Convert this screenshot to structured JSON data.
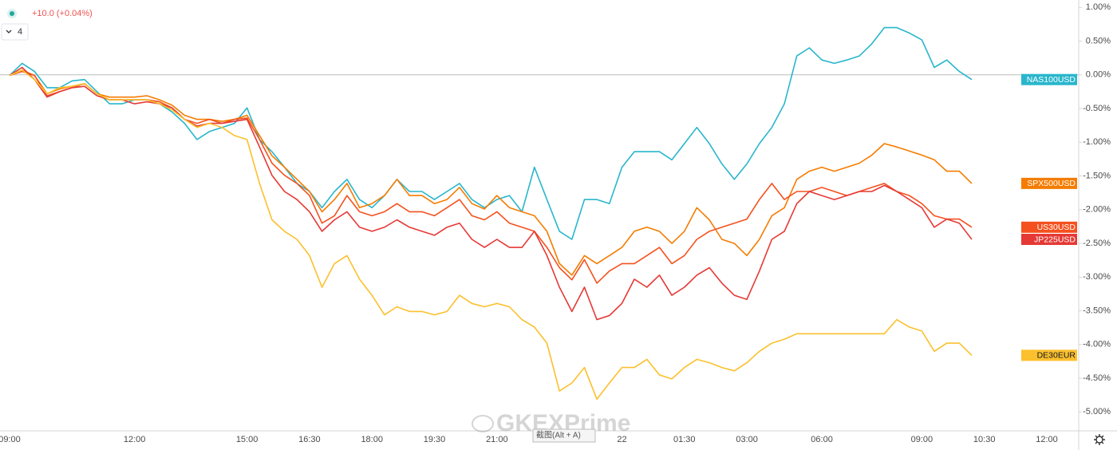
{
  "chart_data": {
    "type": "line",
    "header": {
      "change": "+10.0 (+0.04%)",
      "count": "4"
    },
    "watermark": "GKEXPrime",
    "tooltip": "截图(Alt + A)",
    "categories": [
      "09:00",
      null,
      null,
      null,
      null,
      null,
      null,
      null,
      null,
      null,
      "12:00",
      null,
      null,
      null,
      null,
      null,
      null,
      null,
      null,
      "15:00",
      null,
      null,
      null,
      null,
      "16:30",
      null,
      null,
      null,
      null,
      "18:00",
      null,
      null,
      null,
      null,
      "19:30",
      null,
      null,
      null,
      null,
      "21:00",
      null,
      null,
      null,
      null,
      null,
      null,
      null,
      null,
      null,
      "22",
      null,
      null,
      null,
      null,
      "01:30",
      null,
      null,
      null,
      null,
      "03:00",
      null,
      null,
      null,
      null,
      null,
      "06:00",
      null,
      null,
      null,
      null,
      null,
      null,
      null,
      "09:00",
      null,
      null,
      null,
      null,
      "10:30",
      null,
      null,
      null,
      null,
      "12:00"
    ],
    "ylim": [
      -5.28,
      1.11
    ],
    "yticks": [
      {
        "value": 1,
        "label": "1.00%"
      },
      {
        "value": 0.5,
        "label": "0.50%"
      },
      {
        "value": 0,
        "label": "0.00%"
      },
      {
        "value": -0.5,
        "label": "-0.50%"
      },
      {
        "value": -1,
        "label": "-1.00%"
      },
      {
        "value": -1.5,
        "label": "-1.50%"
      },
      {
        "value": -2,
        "label": "-2.00%"
      },
      {
        "value": -2.5,
        "label": "-2.50%"
      },
      {
        "value": -3,
        "label": "-3.00%"
      },
      {
        "value": -3.5,
        "label": "-3.50%"
      },
      {
        "value": -4,
        "label": "-4.00%"
      },
      {
        "value": -4.5,
        "label": "-4.50%"
      },
      {
        "value": -5,
        "label": "-5.00%"
      }
    ],
    "series": [
      {
        "name": "NAS100USD",
        "color": "#29b6cc",
        "values": [
          -0.01,
          0.17,
          0.05,
          -0.19,
          -0.19,
          -0.09,
          -0.07,
          -0.25,
          -0.43,
          -0.43,
          -0.37,
          -0.37,
          -0.43,
          -0.55,
          -0.72,
          -0.96,
          -0.84,
          -0.78,
          -0.72,
          -0.49,
          -0.96,
          -1.14,
          -1.37,
          -1.61,
          -1.73,
          -1.97,
          -1.73,
          -1.55,
          -1.85,
          -1.97,
          -1.79,
          -1.55,
          -1.73,
          -1.73,
          -1.85,
          -1.73,
          -1.61,
          -1.85,
          -1.97,
          -1.85,
          -1.79,
          -2.03,
          -1.37,
          -1.85,
          -2.32,
          -2.44,
          -1.85,
          -1.85,
          -1.91,
          -1.37,
          -1.14,
          -1.14,
          -1.14,
          -1.26,
          -1.02,
          -0.78,
          -1.02,
          -1.32,
          -1.55,
          -1.32,
          -1.02,
          -0.78,
          -0.43,
          0.28,
          0.4,
          0.22,
          0.17,
          0.22,
          0.28,
          0.46,
          0.7,
          0.7,
          0.62,
          0.52,
          0.11,
          0.22,
          0.05,
          -0.07,
          null,
          null,
          null,
          null,
          null,
          null
        ]
      },
      {
        "name": "SPX500USD",
        "color": "#f57c00",
        "values": [
          -0.01,
          0.07,
          -0.01,
          -0.28,
          -0.21,
          -0.17,
          -0.13,
          -0.28,
          -0.33,
          -0.33,
          -0.33,
          -0.31,
          -0.37,
          -0.45,
          -0.6,
          -0.66,
          -0.66,
          -0.69,
          -0.66,
          -0.6,
          -0.9,
          -1.2,
          -1.37,
          -1.55,
          -1.73,
          -2.03,
          -1.85,
          -1.61,
          -1.97,
          -1.91,
          -1.79,
          -1.55,
          -1.79,
          -1.79,
          -1.91,
          -1.85,
          -1.67,
          -1.91,
          -1.99,
          -1.79,
          -1.97,
          -2.03,
          -2.09,
          -2.32,
          -2.8,
          -2.97,
          -2.68,
          -2.8,
          -2.68,
          -2.56,
          -2.32,
          -2.26,
          -2.32,
          -2.5,
          -2.32,
          -1.97,
          -2.15,
          -2.44,
          -2.5,
          -2.68,
          -2.44,
          -2.09,
          -1.97,
          -1.55,
          -1.43,
          -1.37,
          -1.43,
          -1.37,
          -1.31,
          -1.19,
          -1.02,
          -1.07,
          -1.13,
          -1.19,
          -1.26,
          -1.43,
          -1.43,
          -1.61,
          null,
          null,
          null,
          null,
          null,
          null
        ]
      },
      {
        "name": "US30USD",
        "color": "#f4511e",
        "values": [
          -0.01,
          0.05,
          -0.01,
          -0.31,
          -0.25,
          -0.19,
          -0.13,
          -0.28,
          -0.37,
          -0.37,
          -0.37,
          -0.37,
          -0.4,
          -0.49,
          -0.66,
          -0.72,
          -0.66,
          -0.72,
          -0.66,
          -0.64,
          -0.96,
          -1.31,
          -1.49,
          -1.61,
          -1.79,
          -2.2,
          -2.09,
          -1.79,
          -2.03,
          -2.09,
          -2.03,
          -1.91,
          -2.03,
          -2.03,
          -2.09,
          -1.97,
          -1.85,
          -2.09,
          -2.15,
          -2.03,
          -2.2,
          -2.26,
          -2.32,
          -2.56,
          -2.86,
          -3.04,
          -2.74,
          -3.09,
          -2.91,
          -2.8,
          -2.8,
          -2.68,
          -2.56,
          -2.8,
          -2.68,
          -2.44,
          -2.32,
          -2.26,
          -2.2,
          -2.14,
          -1.85,
          -1.61,
          -1.85,
          -1.73,
          -1.73,
          -1.67,
          -1.73,
          -1.79,
          -1.73,
          -1.67,
          -1.61,
          -1.73,
          -1.79,
          -1.91,
          -2.09,
          -2.14,
          -2.14,
          -2.26,
          null,
          null,
          null,
          null,
          null,
          null
        ]
      },
      {
        "name": "JP225USD",
        "color": "#e53935",
        "values": [
          -0.01,
          0.11,
          -0.07,
          -0.33,
          -0.25,
          -0.19,
          -0.17,
          -0.31,
          -0.37,
          -0.37,
          -0.43,
          -0.4,
          -0.43,
          -0.49,
          -0.66,
          -0.76,
          -0.72,
          -0.72,
          -0.69,
          -0.66,
          -1.07,
          -1.49,
          -1.73,
          -1.85,
          -2.03,
          -2.32,
          -2.15,
          -2.03,
          -2.26,
          -2.32,
          -2.26,
          -2.15,
          -2.26,
          -2.32,
          -2.38,
          -2.26,
          -2.2,
          -2.44,
          -2.56,
          -2.44,
          -2.56,
          -2.56,
          -2.32,
          -2.68,
          -3.15,
          -3.51,
          -3.15,
          -3.63,
          -3.57,
          -3.39,
          -3.03,
          -3.15,
          -2.97,
          -3.27,
          -3.15,
          -2.97,
          -2.86,
          -3.09,
          -3.27,
          -3.33,
          -2.91,
          -2.44,
          -2.32,
          -1.91,
          -1.73,
          -1.79,
          -1.85,
          -1.79,
          -1.73,
          -1.73,
          -1.64,
          -1.73,
          -1.85,
          -1.97,
          -2.26,
          -2.14,
          -2.2,
          -2.44,
          null,
          null,
          null,
          null,
          null,
          null
        ]
      },
      {
        "name": "DE30EUR",
        "color": "#fbc02d",
        "values": [
          -0.01,
          0.07,
          -0.07,
          -0.28,
          -0.19,
          -0.17,
          -0.13,
          -0.28,
          -0.37,
          -0.37,
          -0.37,
          -0.37,
          -0.43,
          -0.52,
          -0.66,
          -0.78,
          -0.72,
          -0.78,
          -0.9,
          -0.96,
          -1.61,
          -2.15,
          -2.32,
          -2.44,
          -2.68,
          -3.15,
          -2.8,
          -2.68,
          -3.03,
          -3.27,
          -3.56,
          -3.44,
          -3.51,
          -3.51,
          -3.56,
          -3.51,
          -3.27,
          -3.39,
          -3.44,
          -3.39,
          -3.44,
          -3.63,
          -3.74,
          -3.98,
          -4.69,
          -4.57,
          -4.34,
          -4.81,
          -4.57,
          -4.34,
          -4.34,
          -4.22,
          -4.45,
          -4.51,
          -4.34,
          -4.22,
          -4.27,
          -4.34,
          -4.39,
          -4.27,
          -4.1,
          -3.98,
          -3.92,
          -3.84,
          -3.84,
          -3.84,
          -3.84,
          -3.84,
          -3.84,
          -3.84,
          -3.84,
          -3.63,
          -3.74,
          -3.8,
          -4.1,
          -3.98,
          -3.98,
          -4.16,
          null,
          null,
          null,
          null,
          null,
          null
        ]
      }
    ]
  }
}
